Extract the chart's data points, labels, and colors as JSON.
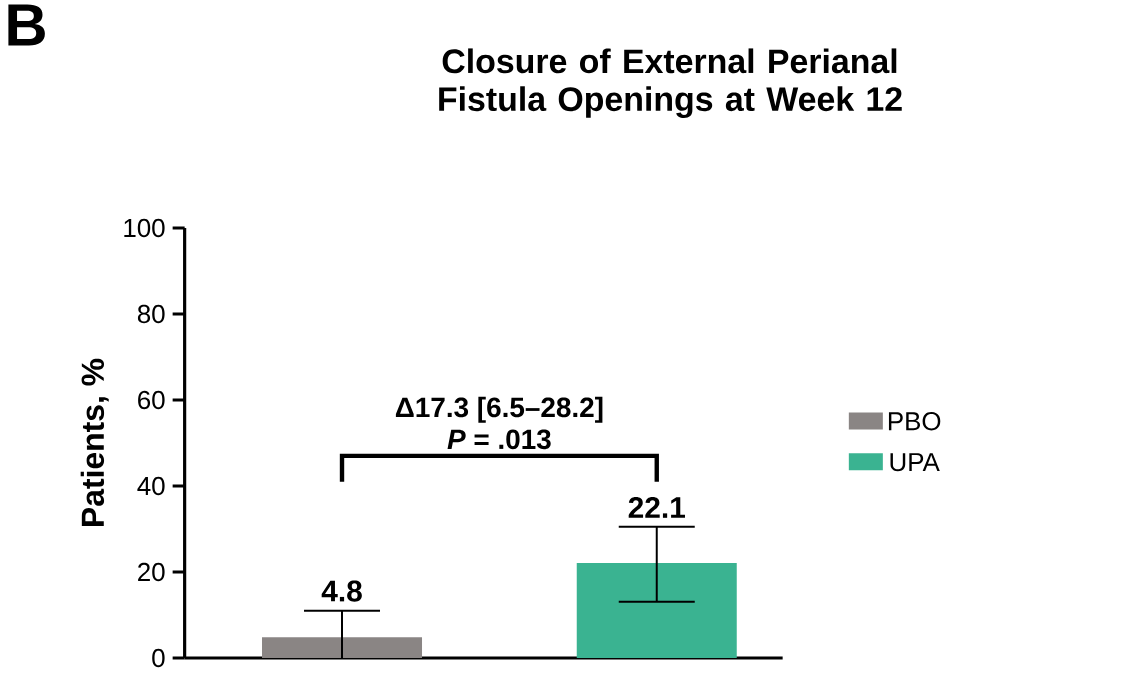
{
  "chart_data": {
    "type": "bar",
    "title": "Closure of External Perianal Fistula Openings at Week 12",
    "ylabel": "Patients, %",
    "categories": [
      null,
      null
    ],
    "series": [
      {
        "name": "PBO",
        "color": "#8a8584",
        "values": [
          4.8,
          null
        ],
        "errors": [
          [
            0,
            11.0
          ],
          null
        ]
      },
      {
        "name": "UPA",
        "color": "#3ab391",
        "values": [
          null,
          22.1
        ],
        "errors": [
          null,
          [
            13.1,
            30.5
          ]
        ]
      }
    ],
    "ylim": [
      0,
      100
    ],
    "yticks": [
      0,
      20,
      40,
      60,
      80,
      100
    ],
    "data_labels": true,
    "legend": "right",
    "annotations": [
      "B",
      "Δ17.3 [6.5–28.2]",
      "*P* = .013"
    ]
  }
}
